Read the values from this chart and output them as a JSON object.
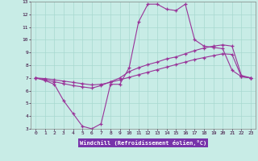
{
  "xlabel": "Windchill (Refroidissement éolien,°C)",
  "background_color": "#c8ece6",
  "grid_color": "#a8d8d0",
  "line_color": "#993399",
  "xlabel_bg": "#7733aa",
  "xlabel_color": "#ffffff",
  "xlim": [
    -0.5,
    23.5
  ],
  "ylim": [
    3,
    13
  ],
  "xticks": [
    0,
    1,
    2,
    3,
    4,
    5,
    6,
    7,
    8,
    9,
    10,
    11,
    12,
    13,
    14,
    15,
    16,
    17,
    18,
    19,
    20,
    21,
    22,
    23
  ],
  "yticks": [
    3,
    4,
    5,
    6,
    7,
    8,
    9,
    10,
    11,
    12,
    13
  ],
  "curve1_x": [
    0,
    1,
    2,
    3,
    4,
    5,
    6,
    7,
    8,
    9,
    10,
    11,
    12,
    13,
    14,
    15,
    16,
    17,
    18,
    19,
    20,
    21,
    22,
    23
  ],
  "curve1_y": [
    7.0,
    6.8,
    6.5,
    5.2,
    4.2,
    3.2,
    3.0,
    3.4,
    6.5,
    6.5,
    7.8,
    11.4,
    12.8,
    12.8,
    12.4,
    12.3,
    12.8,
    10.0,
    9.5,
    9.4,
    9.3,
    7.6,
    7.1,
    7.0
  ],
  "curve2_x": [
    0,
    1,
    2,
    3,
    4,
    5,
    6,
    7,
    8,
    9,
    10,
    11,
    12,
    13,
    14,
    15,
    16,
    17,
    18,
    19,
    20,
    21,
    22,
    23
  ],
  "curve2_y": [
    7.0,
    6.85,
    6.7,
    6.55,
    6.4,
    6.3,
    6.2,
    6.4,
    6.7,
    7.0,
    7.5,
    7.8,
    8.05,
    8.25,
    8.5,
    8.65,
    8.9,
    9.15,
    9.35,
    9.5,
    9.6,
    9.5,
    7.2,
    7.0
  ],
  "curve3_x": [
    0,
    1,
    2,
    3,
    4,
    5,
    6,
    7,
    8,
    9,
    10,
    11,
    12,
    13,
    14,
    15,
    16,
    17,
    18,
    19,
    20,
    21,
    22,
    23
  ],
  "curve3_y": [
    7.0,
    6.95,
    6.85,
    6.75,
    6.65,
    6.55,
    6.45,
    6.5,
    6.65,
    6.85,
    7.05,
    7.25,
    7.45,
    7.65,
    7.85,
    8.05,
    8.25,
    8.45,
    8.6,
    8.75,
    8.9,
    8.85,
    7.1,
    7.0
  ]
}
